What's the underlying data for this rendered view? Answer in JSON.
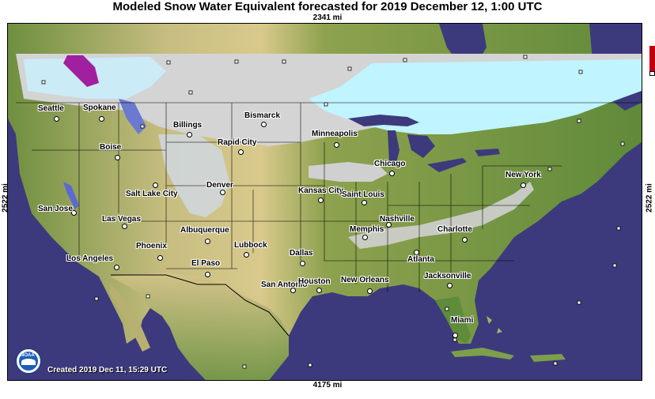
{
  "title": "Modeled Snow Water Equivalent forecasted for 2019 December 12, 1:00 UTC",
  "dimensions": {
    "top": "2341 mi",
    "bottom": "4175 mi",
    "left": "2522 mi",
    "right": "2522 mi"
  },
  "created": "Created 2019 Dec 11, 15:29 UTC",
  "logo_text": "NOAA",
  "colors": {
    "ocean": "#3c3a7c",
    "land_low": "#5f8a3a",
    "land_high": "#d8c990",
    "snow_light": "#d0d0d0",
    "snow_cyan": "#bff5ff",
    "snow_purple": "#a020a0"
  },
  "cities": [
    {
      "name": "Seattle"
    },
    {
      "name": "Spokane"
    },
    {
      "name": "Billings"
    },
    {
      "name": "Bismarck"
    },
    {
      "name": "Minneapolis"
    },
    {
      "name": "Rapid City"
    },
    {
      "name": "Boise"
    },
    {
      "name": "Chicago"
    },
    {
      "name": "New York"
    },
    {
      "name": "Salt Lake City"
    },
    {
      "name": "Denver"
    },
    {
      "name": "Kansas City"
    },
    {
      "name": "Saint Louis"
    },
    {
      "name": "San Jose"
    },
    {
      "name": "Las Vegas"
    },
    {
      "name": "Nashville"
    },
    {
      "name": "Albuquerque"
    },
    {
      "name": "Memphis"
    },
    {
      "name": "Charlotte"
    },
    {
      "name": "Phoenix"
    },
    {
      "name": "Lubbock"
    },
    {
      "name": "Los Angeles"
    },
    {
      "name": "Dallas"
    },
    {
      "name": "Atlanta"
    },
    {
      "name": "El Paso"
    },
    {
      "name": "Jacksonville"
    },
    {
      "name": "San Antonio"
    },
    {
      "name": "Houston"
    },
    {
      "name": "New Orleans"
    },
    {
      "name": "Miami"
    }
  ]
}
